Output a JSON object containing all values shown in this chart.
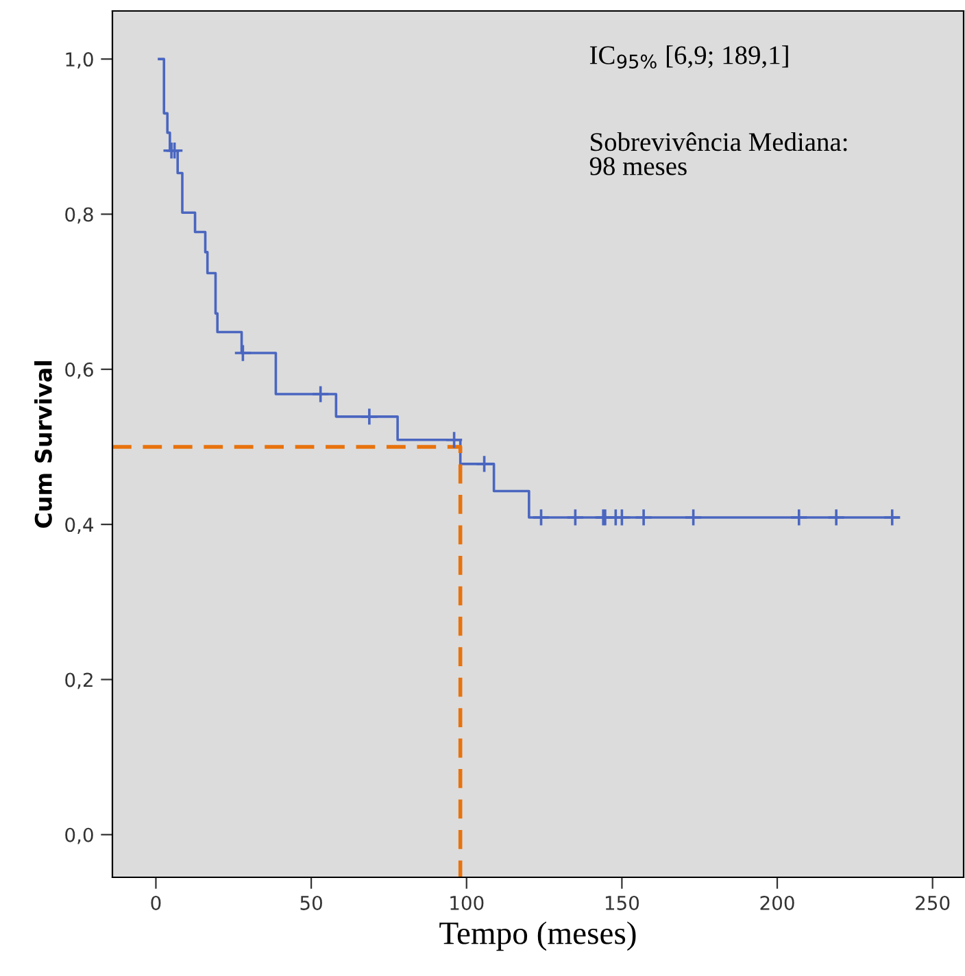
{
  "chart_data": {
    "type": "step",
    "xlabel": "Tempo (meses)",
    "ylabel": "Cum Survival",
    "xlim": [
      -14,
      260
    ],
    "ylim": [
      -0.055,
      1.062
    ],
    "xticks": [
      0,
      50,
      100,
      150,
      200,
      250
    ],
    "yticks": [
      {
        "value": 0,
        "label": "0,0"
      },
      {
        "value": 0.2,
        "label": "0,2"
      },
      {
        "value": 0.4,
        "label": "0,4"
      },
      {
        "value": 0.6,
        "label": "0,6"
      },
      {
        "value": 0.8,
        "label": "0,8"
      },
      {
        "value": 1.0,
        "label": "1,0"
      }
    ],
    "grid": false,
    "legend": false,
    "annotations": [
      "IC$_{95%}$ [6,9; 189,1]",
      "Sobrevivência Mediana:\n98 meses"
    ],
    "series": [
      {
        "color": "#4a66c0",
        "marker": "none",
        "line_style": "solid",
        "x": [
          1,
          2.6,
          3.7,
          4.5,
          7,
          8.5,
          12.6,
          15.9,
          16.6,
          19.2,
          19.8,
          27.6,
          38.6,
          58,
          77.8,
          98,
          108.8,
          120.1,
          239
        ],
        "values": [
          1.0,
          0.93,
          0.905,
          0.882,
          0.853,
          0.802,
          0.777,
          0.751,
          0.724,
          0.672,
          0.648,
          0.621,
          0.568,
          0.539,
          0.509,
          0.478,
          0.443,
          0.409,
          0.409
        ]
      },
      {
        "type": "scatter",
        "color": "#4a66c0",
        "marker": "cross",
        "x": [
          5,
          6,
          28,
          53,
          68.7,
          96,
          105.7,
          124,
          135,
          144,
          144.6,
          148,
          150,
          157,
          173,
          207,
          219,
          237
        ],
        "values": [
          0.882,
          0.882,
          0.621,
          0.568,
          0.539,
          0.509,
          0.478,
          0.409,
          0.409,
          0.409,
          0.409,
          0.409,
          0.409,
          0.409,
          0.409,
          0.409,
          0.409,
          0.409
        ]
      },
      {
        "type": "line",
        "color": "#e8720c",
        "marker": "none",
        "line_style": "dashed",
        "x": [
          -14,
          98,
          98
        ],
        "values": [
          0.5,
          0.5,
          -0.055
        ]
      }
    ]
  }
}
